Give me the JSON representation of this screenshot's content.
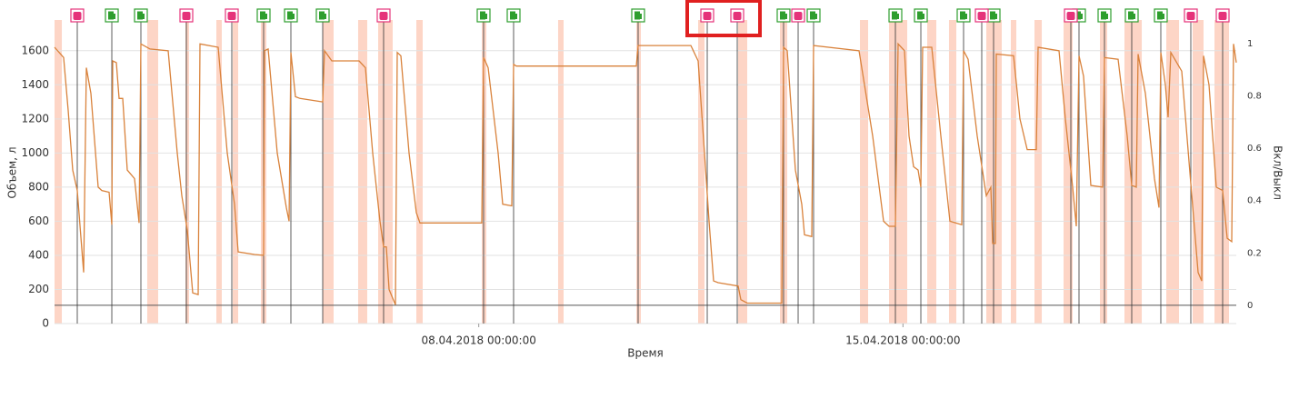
{
  "chart_data": {
    "type": "line",
    "x_label": "Время",
    "y_label": "Объем, л",
    "y2_label": "Вкл/Выкл",
    "xlim": [
      "2018-04-01T00:00",
      "2018-04-20T12:00"
    ],
    "xticks": [
      {
        "value": "2018-04-08T00:00",
        "label": "08.04.2018 00:00:00"
      },
      {
        "value": "2018-04-15T00:00",
        "label": "15.04.2018 00:00:00"
      }
    ],
    "ylim": [
      0,
      1780
    ],
    "yticks": [
      0,
      200,
      400,
      600,
      800,
      1000,
      1200,
      1400,
      1600
    ],
    "y2lim": [
      -0.07,
      1.09
    ],
    "y2ticks": [
      0,
      0.2,
      0.4,
      0.6,
      0.8,
      1
    ],
    "y2_baseline": 0,
    "grid": true,
    "series": [
      {
        "color": "#d9823b",
        "x": [
          "2018-04-01T00:00",
          "2018-04-01T03:36",
          "2018-04-01T05:24",
          "2018-04-01T07:12",
          "2018-04-01T09:00",
          "2018-04-01T11:31",
          "2018-04-01T12:36",
          "2018-04-01T14:24",
          "2018-04-01T17:17",
          "2018-04-01T18:43",
          "2018-04-01T21:36",
          "2018-04-01T22:41",
          "2018-04-01T23:02",
          "2018-04-02T00:29",
          "2018-04-02T01:34",
          "2018-04-02T03:00",
          "2018-04-02T04:48",
          "2018-04-02T07:41",
          "2018-04-02T09:29",
          "2018-04-02T10:12",
          "2018-04-02T13:48",
          "2018-04-02T21:00",
          "2018-04-03T00:36",
          "2018-04-03T02:24",
          "2018-04-03T04:34",
          "2018-04-03T06:43",
          "2018-04-03T08:53",
          "2018-04-03T09:36",
          "2018-04-03T16:48",
          "2018-04-03T20:24",
          "2018-04-03T23:17",
          "2018-04-04T00:43",
          "2018-04-04T07:12",
          "2018-04-04T10:48",
          "2018-04-04T11:10",
          "2018-04-04T12:36",
          "2018-04-04T16:12",
          "2018-04-04T19:48",
          "2018-04-04T20:53",
          "2018-04-04T21:36",
          "2018-04-04T23:24",
          "2018-04-05T01:12",
          "2018-04-05T10:12",
          "2018-04-05T10:55",
          "2018-04-05T13:48",
          "2018-04-06T00:36",
          "2018-04-06T03:07",
          "2018-04-06T06:00",
          "2018-04-06T08:53",
          "2018-04-06T10:19",
          "2018-04-06T11:24",
          "2018-04-06T12:29",
          "2018-04-06T15:00",
          "2018-04-06T15:43",
          "2018-04-06T17:10",
          "2018-04-06T20:24",
          "2018-04-06T23:17",
          "2018-04-07T00:43",
          "2018-04-08T01:12",
          "2018-04-08T01:55",
          "2018-04-08T03:43",
          "2018-04-08T07:41",
          "2018-04-08T09:29",
          "2018-04-08T13:05",
          "2018-04-08T13:48",
          "2018-04-08T14:53",
          "2018-04-09T16:48",
          "2018-04-10T14:24",
          "2018-04-10T15:07",
          "2018-04-11T12:00",
          "2018-04-11T14:53",
          "2018-04-11T17:24",
          "2018-04-11T19:12",
          "2018-04-11T21:00",
          "2018-04-11T22:48",
          "2018-04-12T06:43",
          "2018-04-12T07:48",
          "2018-04-12T10:19",
          "2018-04-13T00:00",
          "2018-04-13T00:43",
          "2018-04-13T02:10",
          "2018-04-13T05:24",
          "2018-04-13T07:55",
          "2018-04-13T09:00",
          "2018-04-13T11:53",
          "2018-04-13T12:36",
          "2018-04-14T06:36",
          "2018-04-14T12:00",
          "2018-04-14T16:19",
          "2018-04-14T18:29",
          "2018-04-14T21:00",
          "2018-04-14T22:05",
          "2018-04-15T00:36",
          "2018-04-15T02:24",
          "2018-04-15T04:12",
          "2018-04-15T06:00",
          "2018-04-15T07:05",
          "2018-04-15T07:48",
          "2018-04-15T11:24",
          "2018-04-15T15:00",
          "2018-04-15T18:36",
          "2018-04-15T23:17",
          "2018-04-16T00:00",
          "2018-04-16T01:48",
          "2018-04-16T05:24",
          "2018-04-16T09:00",
          "2018-04-16T10:48",
          "2018-04-16T11:31",
          "2018-04-16T12:36",
          "2018-04-16T12:58",
          "2018-04-16T19:48",
          "2018-04-16T22:19",
          "2018-04-17T01:12",
          "2018-04-17T04:48",
          "2018-04-17T05:31",
          "2018-04-17T13:48",
          "2018-04-17T16:19",
          "2018-04-17T19:12",
          "2018-04-17T20:38",
          "2018-04-17T21:43",
          "2018-04-17T23:31",
          "2018-04-18T02:24",
          "2018-04-18T07:05",
          "2018-04-18T07:48",
          "2018-04-18T13:12",
          "2018-04-18T16:48",
          "2018-04-18T18:36",
          "2018-04-18T20:24",
          "2018-04-18T21:07",
          "2018-04-19T00:00",
          "2018-04-19T03:36",
          "2018-04-19T05:24",
          "2018-04-19T06:07",
          "2018-04-19T07:55",
          "2018-04-19T09:00",
          "2018-04-19T10:05",
          "2018-04-19T14:24",
          "2018-04-19T17:17",
          "2018-04-19T20:53",
          "2018-04-19T22:19",
          "2018-04-19T23:02",
          "2018-04-20T01:12",
          "2018-04-20T04:05",
          "2018-04-20T06:36",
          "2018-04-20T08:24",
          "2018-04-20T10:12",
          "2018-04-20T10:55",
          "2018-04-20T12:00"
        ],
        "values": [
          1620,
          1560,
          1250,
          900,
          780,
          300,
          1500,
          1350,
          800,
          780,
          770,
          580,
          1540,
          1530,
          1320,
          1320,
          900,
          850,
          590,
          1640,
          1610,
          1600,
          1000,
          750,
          550,
          180,
          170,
          1640,
          1620,
          1000,
          700,
          420,
          405,
          400,
          1600,
          1610,
          1000,
          680,
          600,
          1590,
          1330,
          1320,
          1300,
          1600,
          1540,
          1540,
          1500,
          1000,
          600,
          450,
          450,
          200,
          110,
          1590,
          1570,
          1000,
          650,
          590,
          590,
          1560,
          1500,
          1000,
          700,
          690,
          1520,
          1510,
          1510,
          1510,
          1630,
          1630,
          1540,
          1000,
          600,
          250,
          240,
          220,
          140,
          120,
          120,
          1620,
          1600,
          900,
          700,
          520,
          510,
          1630,
          1600,
          1100,
          600,
          570,
          570,
          1640,
          1600,
          1100,
          920,
          900,
          800,
          1620,
          1620,
          1100,
          600,
          580,
          1600,
          1550,
          1100,
          750,
          800,
          470,
          470,
          1580,
          1570,
          1200,
          1020,
          1020,
          1620,
          1600,
          1200,
          800,
          570,
          1570,
          1450,
          810,
          800,
          1560,
          1550,
          1100,
          810,
          800,
          1580,
          1350,
          850,
          680,
          1590,
          1400,
          1210,
          1590,
          1480,
          950,
          300,
          250,
          1570,
          1400,
          800,
          780,
          500,
          480,
          1640,
          1530
        ]
      }
    ],
    "ignition": {
      "color": "#fdd5c6",
      "axis": "y2",
      "periods": [
        [
          "2018-04-01T00:00",
          "2018-04-01T02:53"
        ],
        [
          "2018-04-02T12:43",
          "2018-04-02T17:02"
        ],
        [
          "2018-04-03T03:50",
          "2018-04-03T05:17"
        ],
        [
          "2018-04-03T16:05",
          "2018-04-03T18:14"
        ],
        [
          "2018-04-03T22:34",
          "2018-04-04T00:43"
        ],
        [
          "2018-04-04T09:43",
          "2018-04-04T11:53"
        ],
        [
          "2018-04-05T10:12",
          "2018-04-05T14:31"
        ],
        [
          "2018-04-06T00:14",
          "2018-04-06T03:50"
        ],
        [
          "2018-04-06T08:10",
          "2018-04-06T13:55"
        ],
        [
          "2018-04-06T23:17",
          "2018-04-07T01:48"
        ],
        [
          "2018-04-08T01:12",
          "2018-04-08T03:00"
        ],
        [
          "2018-04-09T07:26",
          "2018-04-09T09:36"
        ],
        [
          "2018-04-10T14:24",
          "2018-04-10T16:12"
        ],
        [
          "2018-04-11T14:53",
          "2018-04-11T17:24"
        ],
        [
          "2018-04-12T06:43",
          "2018-04-12T10:19"
        ],
        [
          "2018-04-12T23:17",
          "2018-04-13T02:10"
        ],
        [
          "2018-04-14T06:58",
          "2018-04-14T10:12"
        ],
        [
          "2018-04-14T18:29",
          "2018-04-15T01:41"
        ],
        [
          "2018-04-15T09:36",
          "2018-04-15T13:12"
        ],
        [
          "2018-04-15T18:14",
          "2018-04-15T21:07"
        ],
        [
          "2018-04-16T09:00",
          "2018-04-16T15:07"
        ],
        [
          "2018-04-16T18:43",
          "2018-04-16T20:53"
        ],
        [
          "2018-04-17T04:05",
          "2018-04-17T06:58"
        ],
        [
          "2018-04-17T15:36",
          "2018-04-17T19:12"
        ],
        [
          "2018-04-18T06:00",
          "2018-04-18T08:53"
        ],
        [
          "2018-04-18T15:43",
          "2018-04-18T22:34"
        ],
        [
          "2018-04-19T08:17",
          "2018-04-19T13:19"
        ],
        [
          "2018-04-19T18:43",
          "2018-04-19T23:02"
        ],
        [
          "2018-04-20T03:22",
          "2018-04-20T09:07"
        ]
      ]
    },
    "refuels": {
      "color": "#2e9e2e",
      "x": [
        "2018-04-01T22:41",
        "2018-04-02T10:12",
        "2018-04-04T10:48",
        "2018-04-04T21:36",
        "2018-04-05T10:12",
        "2018-04-08T01:55",
        "2018-04-08T13:48",
        "2018-04-10T15:07",
        "2018-04-13T00:43",
        "2018-04-13T12:36",
        "2018-04-14T21:00",
        "2018-04-15T07:05",
        "2018-04-16T00:00",
        "2018-04-16T11:53",
        "2018-04-17T21:43",
        "2018-04-18T07:48",
        "2018-04-18T18:36",
        "2018-04-19T06:07"
      ]
    },
    "drains": {
      "color": "#e5337a",
      "x": [
        "2018-04-01T09:00",
        "2018-04-03T04:12",
        "2018-04-03T22:12",
        "2018-04-06T10:19",
        "2018-04-11T18:29",
        "2018-04-12T06:22",
        "2018-04-13T06:29",
        "2018-04-16T07:12",
        "2018-04-17T18:29",
        "2018-04-19T18:00",
        "2018-04-20T06:36"
      ]
    }
  }
}
